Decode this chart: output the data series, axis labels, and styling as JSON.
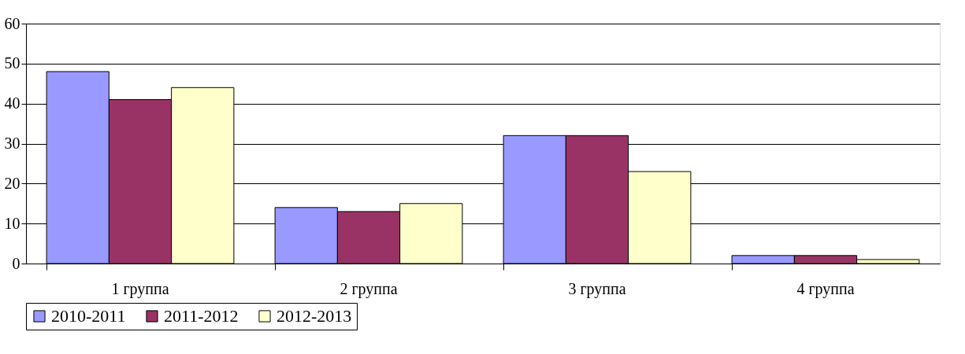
{
  "chart_data": {
    "type": "bar",
    "categories": [
      "1 группа",
      "2 группа",
      "3 группа",
      "4 группа"
    ],
    "series": [
      {
        "name": "2010-2011",
        "color": "#9999ff",
        "values": [
          48,
          14,
          32,
          2
        ]
      },
      {
        "name": "2011-2012",
        "color": "#993366",
        "values": [
          41,
          13,
          32,
          2
        ]
      },
      {
        "name": "2012-2013",
        "color": "#ffffcc",
        "values": [
          44,
          15,
          23,
          1
        ]
      }
    ],
    "ylim": [
      0,
      60
    ],
    "yticks": [
      0,
      10,
      20,
      30,
      40,
      50,
      60
    ],
    "grid": "y",
    "legend": "bottom"
  }
}
